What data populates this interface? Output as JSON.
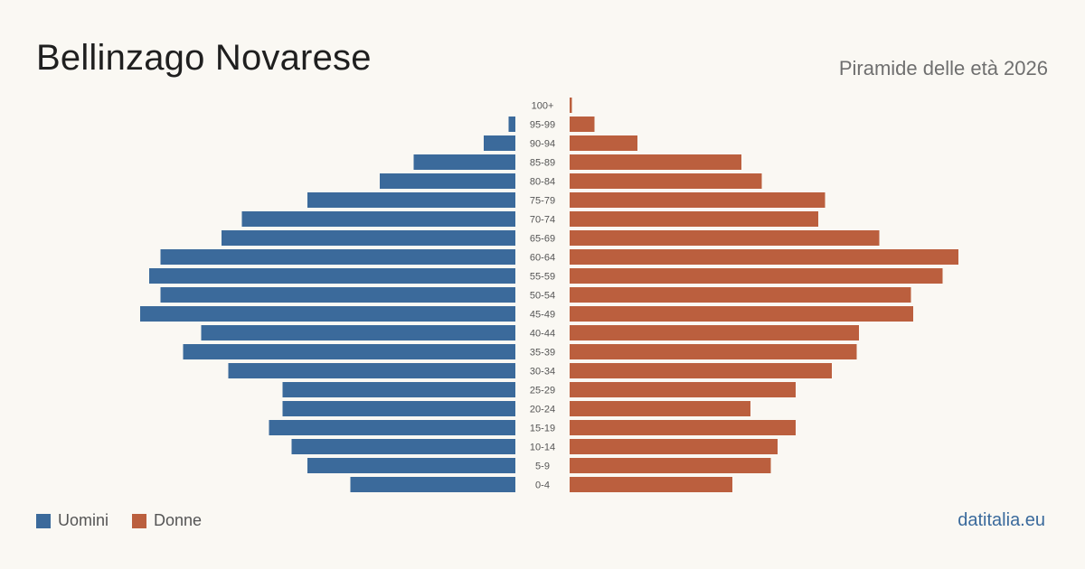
{
  "header": {
    "title": "Bellinzago Novarese",
    "subtitle": "Piramide delle età 2026"
  },
  "legend": {
    "men_label": "Uomini",
    "women_label": "Donne"
  },
  "footer": {
    "source": "datitalia.eu"
  },
  "colors": {
    "men": "#3b6a9b",
    "women": "#bb5f3e"
  },
  "chart_data": {
    "type": "bar",
    "orientation": "horizontal-pyramid",
    "categories": [
      "100+",
      "95-99",
      "90-94",
      "85-89",
      "80-84",
      "75-79",
      "70-74",
      "65-69",
      "60-64",
      "55-59",
      "50-54",
      "45-49",
      "40-44",
      "35-39",
      "30-34",
      "25-29",
      "20-24",
      "15-19",
      "10-14",
      "5-9",
      "0-4"
    ],
    "series": [
      {
        "name": "Uomini",
        "values": [
          0,
          3,
          14,
          45,
          60,
          92,
          121,
          130,
          157,
          162,
          157,
          166,
          139,
          147,
          127,
          103,
          103,
          109,
          99,
          92,
          73
        ]
      },
      {
        "name": "Donne",
        "values": [
          1,
          11,
          30,
          76,
          85,
          113,
          110,
          137,
          172,
          165,
          151,
          152,
          128,
          127,
          116,
          100,
          80,
          100,
          92,
          89,
          72
        ]
      }
    ],
    "legend_position": "bottom-left",
    "grid": false
  }
}
